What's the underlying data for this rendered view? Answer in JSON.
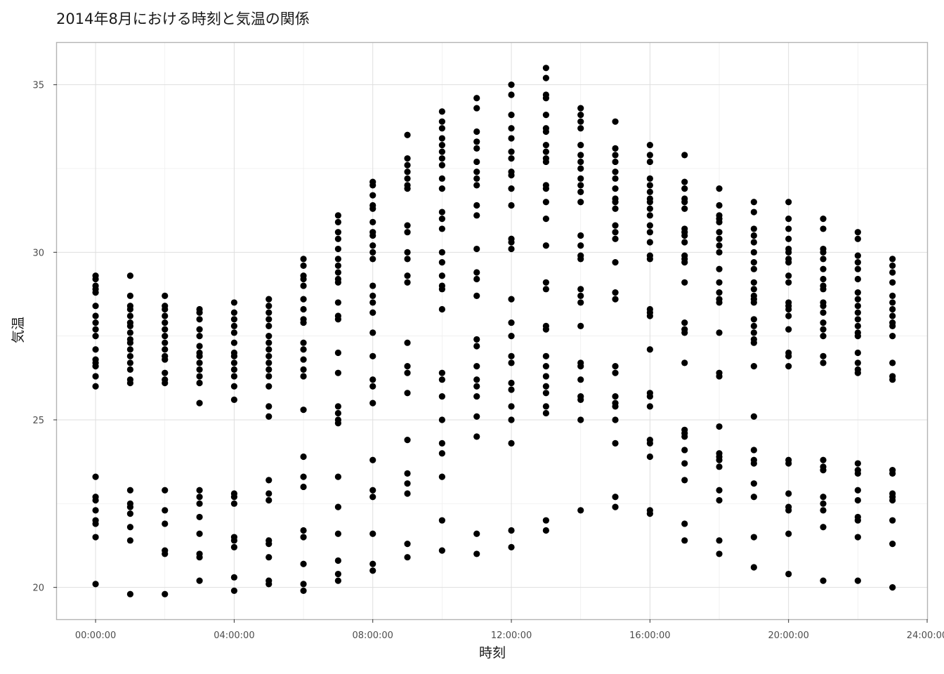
{
  "chart_data": {
    "type": "scatter",
    "title": "2014年8月における時刻と気温の関係",
    "xlabel": "時刻",
    "ylabel": "気温",
    "xlim": [
      "-01:07:00",
      "24:00:00"
    ],
    "ylim": [
      19.05,
      36.25
    ],
    "x_ticks": [
      "00:00:00",
      "04:00:00",
      "08:00:00",
      "12:00:00",
      "16:00:00",
      "20:00:00",
      "24:00:00"
    ],
    "y_ticks": [
      20,
      25,
      30,
      35
    ],
    "grid": true,
    "point_color": "#000000",
    "series": [
      {
        "x": "00:00:00",
        "y": [
          29.3,
          29.2,
          29.0,
          28.9,
          28.8,
          28.4,
          28.1,
          27.9,
          27.7,
          27.5,
          27.1,
          26.8,
          26.7,
          26.6,
          26.3,
          26.0,
          23.3,
          22.7,
          22.6,
          22.3,
          22.0,
          21.9,
          21.5,
          20.1
        ]
      },
      {
        "x": "01:00:00",
        "y": [
          29.3,
          28.7,
          28.4,
          28.3,
          28.1,
          27.9,
          27.8,
          27.6,
          27.4,
          27.3,
          27.1,
          26.9,
          26.7,
          26.5,
          26.2,
          26.1,
          22.9,
          22.5,
          22.4,
          22.2,
          21.8,
          21.4,
          19.8
        ]
      },
      {
        "x": "02:00:00",
        "y": [
          28.7,
          28.4,
          28.3,
          28.1,
          27.9,
          27.7,
          27.5,
          27.3,
          27.1,
          26.9,
          26.8,
          26.4,
          26.2,
          26.1,
          22.9,
          22.3,
          21.9,
          21.1,
          21.0,
          19.8
        ]
      },
      {
        "x": "03:00:00",
        "y": [
          28.3,
          28.2,
          28.0,
          27.7,
          27.5,
          27.2,
          27.0,
          26.9,
          26.7,
          26.5,
          26.3,
          26.1,
          25.5,
          22.9,
          22.7,
          22.5,
          22.1,
          21.6,
          21.0,
          20.9,
          20.2
        ]
      },
      {
        "x": "04:00:00",
        "y": [
          28.5,
          28.2,
          28.0,
          27.8,
          27.6,
          27.3,
          27.0,
          26.9,
          26.7,
          26.5,
          26.3,
          26.0,
          25.6,
          22.8,
          22.7,
          22.5,
          21.5,
          21.4,
          21.2,
          20.3,
          19.9
        ]
      },
      {
        "x": "05:00:00",
        "y": [
          28.6,
          28.4,
          28.2,
          28.0,
          27.8,
          27.5,
          27.3,
          27.1,
          26.9,
          26.7,
          26.5,
          26.3,
          26.0,
          25.4,
          25.1,
          23.2,
          22.8,
          22.6,
          21.4,
          21.3,
          20.9,
          20.2,
          20.1
        ]
      },
      {
        "x": "06:00:00",
        "y": [
          29.8,
          29.6,
          29.3,
          29.2,
          29.0,
          28.6,
          28.3,
          28.0,
          27.9,
          27.3,
          27.1,
          26.8,
          26.5,
          26.3,
          25.3,
          23.9,
          23.3,
          23.0,
          21.7,
          21.5,
          20.7,
          20.1,
          19.9
        ]
      },
      {
        "x": "07:00:00",
        "y": [
          31.1,
          30.9,
          30.6,
          30.4,
          30.1,
          29.8,
          29.6,
          29.4,
          29.2,
          29.1,
          28.5,
          28.1,
          28.0,
          27.0,
          26.4,
          25.4,
          25.2,
          25.0,
          24.9,
          23.3,
          22.4,
          21.6,
          20.8,
          20.4,
          20.2
        ]
      },
      {
        "x": "08:00:00",
        "y": [
          32.1,
          32.0,
          31.7,
          31.4,
          31.3,
          30.9,
          30.6,
          30.5,
          30.2,
          30.0,
          29.8,
          29.0,
          28.7,
          28.5,
          28.2,
          27.6,
          26.9,
          26.2,
          26.0,
          25.5,
          23.8,
          22.9,
          22.7,
          21.6,
          20.7,
          20.5
        ]
      },
      {
        "x": "09:00:00",
        "y": [
          33.5,
          32.8,
          32.6,
          32.4,
          32.2,
          32.0,
          31.9,
          30.8,
          30.6,
          30.0,
          29.8,
          29.3,
          29.1,
          27.3,
          26.6,
          26.4,
          25.8,
          24.4,
          23.4,
          23.1,
          22.8,
          21.3,
          20.9
        ]
      },
      {
        "x": "10:00:00",
        "y": [
          34.2,
          33.9,
          33.7,
          33.4,
          33.2,
          33.0,
          32.8,
          32.6,
          32.2,
          31.9,
          31.2,
          31.0,
          30.7,
          30.0,
          29.7,
          29.3,
          29.0,
          28.9,
          28.3,
          26.4,
          26.2,
          25.7,
          25.0,
          24.3,
          24.0,
          23.3,
          22.0,
          21.1
        ]
      },
      {
        "x": "11:00:00",
        "y": [
          34.6,
          34.3,
          33.6,
          33.3,
          33.1,
          32.7,
          32.4,
          32.2,
          32.0,
          31.4,
          31.1,
          30.1,
          29.4,
          29.2,
          28.7,
          27.4,
          27.2,
          26.6,
          26.2,
          26.0,
          25.7,
          25.1,
          24.5,
          21.6,
          21.0
        ]
      },
      {
        "x": "12:00:00",
        "y": [
          35.0,
          34.7,
          34.1,
          33.7,
          33.4,
          33.0,
          32.8,
          32.4,
          32.3,
          31.9,
          31.4,
          30.4,
          30.3,
          30.1,
          28.6,
          27.9,
          27.5,
          26.9,
          26.7,
          26.1,
          25.9,
          25.4,
          25.0,
          24.3,
          21.7,
          21.2
        ]
      },
      {
        "x": "13:00:00",
        "y": [
          35.5,
          35.2,
          34.7,
          34.6,
          34.1,
          33.7,
          33.6,
          33.2,
          33.0,
          32.8,
          32.7,
          32.0,
          31.9,
          31.5,
          31.0,
          30.2,
          29.1,
          28.9,
          27.8,
          27.7,
          26.9,
          26.6,
          26.3,
          26.0,
          25.8,
          25.4,
          25.2,
          22.0,
          21.7
        ]
      },
      {
        "x": "14:00:00",
        "y": [
          34.3,
          34.1,
          33.9,
          33.7,
          33.2,
          32.9,
          32.7,
          32.5,
          32.2,
          32.0,
          31.8,
          31.5,
          30.5,
          30.2,
          29.9,
          29.8,
          28.9,
          28.7,
          28.5,
          27.8,
          26.7,
          26.6,
          26.2,
          25.7,
          25.6,
          25.0,
          22.3
        ]
      },
      {
        "x": "15:00:00",
        "y": [
          33.9,
          33.1,
          32.9,
          32.7,
          32.4,
          32.2,
          31.9,
          31.6,
          31.5,
          31.3,
          30.8,
          30.6,
          30.4,
          29.7,
          28.8,
          28.6,
          26.6,
          26.4,
          25.7,
          25.5,
          25.4,
          25.0,
          24.3,
          22.7,
          22.4
        ]
      },
      {
        "x": "16:00:00",
        "y": [
          33.2,
          32.9,
          32.7,
          32.2,
          32.0,
          31.8,
          31.6,
          31.5,
          31.3,
          31.1,
          30.8,
          30.6,
          30.3,
          29.9,
          29.8,
          28.3,
          28.2,
          28.1,
          27.1,
          25.8,
          25.7,
          25.4,
          24.4,
          24.3,
          23.9,
          22.3,
          22.2
        ]
      },
      {
        "x": "17:00:00",
        "y": [
          32.9,
          32.1,
          31.9,
          31.6,
          31.5,
          31.3,
          30.7,
          30.6,
          30.5,
          30.3,
          29.9,
          29.8,
          29.7,
          29.1,
          27.9,
          27.7,
          27.6,
          26.7,
          24.7,
          24.6,
          24.5,
          24.1,
          23.7,
          23.2,
          21.9,
          21.4
        ]
      },
      {
        "x": "18:00:00",
        "y": [
          31.9,
          31.4,
          31.1,
          31.0,
          30.9,
          30.6,
          30.4,
          30.2,
          30.0,
          29.5,
          29.1,
          28.8,
          28.6,
          28.5,
          27.6,
          26.4,
          26.3,
          24.8,
          24.0,
          23.9,
          23.8,
          23.6,
          22.9,
          22.6,
          21.4,
          21.0
        ]
      },
      {
        "x": "19:00:00",
        "y": [
          31.5,
          31.2,
          30.7,
          30.5,
          30.3,
          30.0,
          29.7,
          29.5,
          29.1,
          28.9,
          28.7,
          28.6,
          28.5,
          28.0,
          27.8,
          27.6,
          27.4,
          27.3,
          26.6,
          25.1,
          24.1,
          23.8,
          23.7,
          23.1,
          22.7,
          21.5,
          20.6
        ]
      },
      {
        "x": "20:00:00",
        "y": [
          31.5,
          31.0,
          30.7,
          30.4,
          30.1,
          30.0,
          29.8,
          29.7,
          29.3,
          29.1,
          28.5,
          28.4,
          28.3,
          28.1,
          27.7,
          27.0,
          26.9,
          26.6,
          23.8,
          23.7,
          22.8,
          22.4,
          22.3,
          21.6,
          20.4
        ]
      },
      {
        "x": "21:00:00",
        "y": [
          31.0,
          30.7,
          30.1,
          30.0,
          29.8,
          29.5,
          29.2,
          29.0,
          28.9,
          28.5,
          28.4,
          28.2,
          27.9,
          27.7,
          27.5,
          26.9,
          26.7,
          23.8,
          23.6,
          23.5,
          22.7,
          22.5,
          22.3,
          21.8,
          20.2
        ]
      },
      {
        "x": "22:00:00",
        "y": [
          30.6,
          30.4,
          29.9,
          29.7,
          29.5,
          29.2,
          28.8,
          28.6,
          28.4,
          28.2,
          28.0,
          27.8,
          27.6,
          27.5,
          27.0,
          26.7,
          26.5,
          26.4,
          23.7,
          23.5,
          23.4,
          22.9,
          22.6,
          22.1,
          22.0,
          21.5,
          20.2
        ]
      },
      {
        "x": "23:00:00",
        "y": [
          29.8,
          29.6,
          29.4,
          29.1,
          28.7,
          28.5,
          28.3,
          28.1,
          27.9,
          27.8,
          27.5,
          26.7,
          26.3,
          26.2,
          23.5,
          23.4,
          22.8,
          22.7,
          22.6,
          22.0,
          21.3,
          20.0
        ]
      }
    ]
  }
}
